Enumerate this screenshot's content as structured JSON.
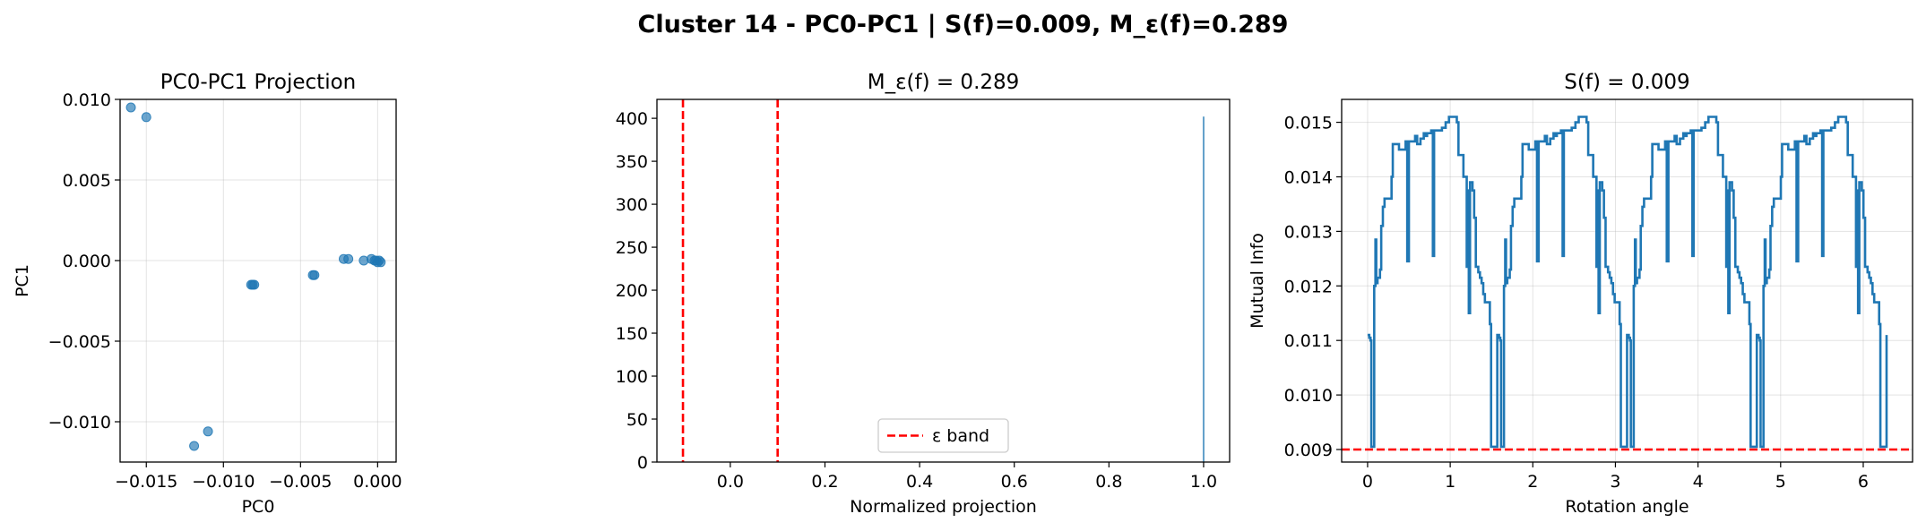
{
  "figure": {
    "suptitle": "Cluster 14 - PC0-PC1 | S(f)=0.009, M_ε(f)=0.289"
  },
  "chart_data": [
    {
      "type": "scatter",
      "title": "PC0-PC1 Projection",
      "xlabel": "PC0",
      "ylabel": "PC1",
      "xlim": [
        -0.0167,
        0.0012
      ],
      "ylim": [
        -0.0125,
        0.01
      ],
      "xticks": [
        -0.015,
        -0.01,
        -0.005,
        0.0
      ],
      "xtick_labels": [
        "−0.015",
        "−0.010",
        "−0.005",
        "0.000"
      ],
      "yticks": [
        -0.01,
        -0.005,
        0.0,
        0.005,
        0.01
      ],
      "ytick_labels": [
        "−0.010",
        "−0.005",
        "0.000",
        "0.005",
        "0.010"
      ],
      "grid": true,
      "color": "#1f77b4",
      "points": [
        {
          "x": -0.016,
          "y": 0.0095
        },
        {
          "x": -0.015,
          "y": 0.0089
        },
        {
          "x": -0.0119,
          "y": -0.0115
        },
        {
          "x": -0.011,
          "y": -0.0106
        },
        {
          "x": -0.0082,
          "y": -0.0015
        },
        {
          "x": -0.008,
          "y": -0.0015
        },
        {
          "x": -0.0081,
          "y": -0.0015
        },
        {
          "x": -0.0042,
          "y": -0.0009
        },
        {
          "x": -0.0041,
          "y": -0.0009
        },
        {
          "x": -0.0022,
          "y": 0.0001
        },
        {
          "x": -0.0019,
          "y": 0.0001
        },
        {
          "x": -0.0009,
          "y": 0.0
        },
        {
          "x": -0.0004,
          "y": 0.0001
        },
        {
          "x": -0.0002,
          "y": 0.0
        },
        {
          "x": -0.0001,
          "y": 0.0
        },
        {
          "x": 0.0,
          "y": -0.0001
        },
        {
          "x": 0.0001,
          "y": 0.0
        },
        {
          "x": 0.0002,
          "y": -0.0001
        }
      ]
    },
    {
      "type": "bar",
      "title": "M_ε(f) = 0.289",
      "xlabel": "Normalized projection",
      "ylabel": "",
      "xlim": [
        -0.155,
        1.055
      ],
      "ylim": [
        0,
        422
      ],
      "xticks": [
        0.0,
        0.2,
        0.4,
        0.6,
        0.8,
        1.0
      ],
      "xtick_labels": [
        "0.0",
        "0.2",
        "0.4",
        "0.6",
        "0.8",
        "1.0"
      ],
      "yticks": [
        0,
        50,
        100,
        150,
        200,
        250,
        300,
        350,
        400
      ],
      "ytick_labels": [
        "0",
        "50",
        "100",
        "150",
        "200",
        "250",
        "300",
        "350",
        "400"
      ],
      "grid": false,
      "bars": [
        {
          "x": 1.0,
          "value": 402
        }
      ],
      "bar_color": "#1f77b4",
      "epsilon_lines": [
        -0.1,
        0.1
      ],
      "line_color": "#ff0000",
      "legend": {
        "placement": "lower-center",
        "label": "ε band"
      }
    },
    {
      "type": "line",
      "title": "S(f) = 0.009",
      "xlabel": "Rotation angle",
      "ylabel": "Mutual Info",
      "xlim": [
        -0.314,
        6.597
      ],
      "ylim": [
        0.00877,
        0.01542
      ],
      "xticks": [
        0,
        1,
        2,
        3,
        4,
        5,
        6
      ],
      "xtick_labels": [
        "0",
        "1",
        "2",
        "3",
        "4",
        "5",
        "6"
      ],
      "yticks": [
        0.009,
        0.01,
        0.011,
        0.012,
        0.013,
        0.014,
        0.015
      ],
      "ytick_labels": [
        "0.009",
        "0.010",
        "0.011",
        "0.012",
        "0.013",
        "0.014",
        "0.015"
      ],
      "grid": true,
      "color": "#1f77b4",
      "min_line": 0.009,
      "min_line_color": "#ff0000",
      "period": 1.5708,
      "x_end": 6.283,
      "profile": [
        [
          0.0,
          0.0111
        ],
        [
          0.02,
          0.01105
        ],
        [
          0.035,
          0.011
        ],
        [
          0.045,
          0.00905
        ],
        [
          0.07,
          0.00905
        ],
        [
          0.08,
          0.012
        ],
        [
          0.095,
          0.01285
        ],
        [
          0.105,
          0.01205
        ],
        [
          0.12,
          0.01215
        ],
        [
          0.15,
          0.0123
        ],
        [
          0.165,
          0.0131
        ],
        [
          0.185,
          0.01345
        ],
        [
          0.205,
          0.0136
        ],
        [
          0.27,
          0.0136
        ],
        [
          0.29,
          0.014
        ],
        [
          0.305,
          0.0146
        ],
        [
          0.37,
          0.0146
        ],
        [
          0.38,
          0.0145
        ],
        [
          0.44,
          0.0145
        ],
        [
          0.46,
          0.01465
        ],
        [
          0.48,
          0.01245
        ],
        [
          0.5,
          0.01465
        ],
        [
          0.56,
          0.01465
        ],
        [
          0.575,
          0.01475
        ],
        [
          0.6,
          0.0146
        ],
        [
          0.64,
          0.0147
        ],
        [
          0.68,
          0.0148
        ],
        [
          0.7,
          0.01475
        ],
        [
          0.72,
          0.0148
        ],
        [
          0.77,
          0.01485
        ],
        [
          0.79,
          0.01255
        ],
        [
          0.805,
          0.01485
        ],
        [
          0.88,
          0.01485
        ],
        [
          0.9,
          0.0149
        ],
        [
          0.945,
          0.015
        ],
        [
          0.985,
          0.0151
        ],
        [
          1.06,
          0.0151
        ],
        [
          1.08,
          0.015
        ],
        [
          1.1,
          0.0144
        ],
        [
          1.14,
          0.0144
        ],
        [
          1.16,
          0.014
        ],
        [
          1.19,
          0.014
        ],
        [
          1.2,
          0.01235
        ],
        [
          1.21,
          0.01375
        ],
        [
          1.225,
          0.0115
        ],
        [
          1.24,
          0.0139
        ],
        [
          1.27,
          0.01375
        ],
        [
          1.29,
          0.01325
        ],
        [
          1.31,
          0.01235
        ],
        [
          1.34,
          0.01225
        ],
        [
          1.36,
          0.01215
        ],
        [
          1.38,
          0.01205
        ],
        [
          1.4,
          0.01185
        ],
        [
          1.42,
          0.0117
        ],
        [
          1.46,
          0.0117
        ],
        [
          1.48,
          0.0113
        ],
        [
          1.495,
          0.00905
        ],
        [
          1.555,
          0.00905
        ],
        [
          1.57,
          0.0111
        ]
      ]
    }
  ]
}
